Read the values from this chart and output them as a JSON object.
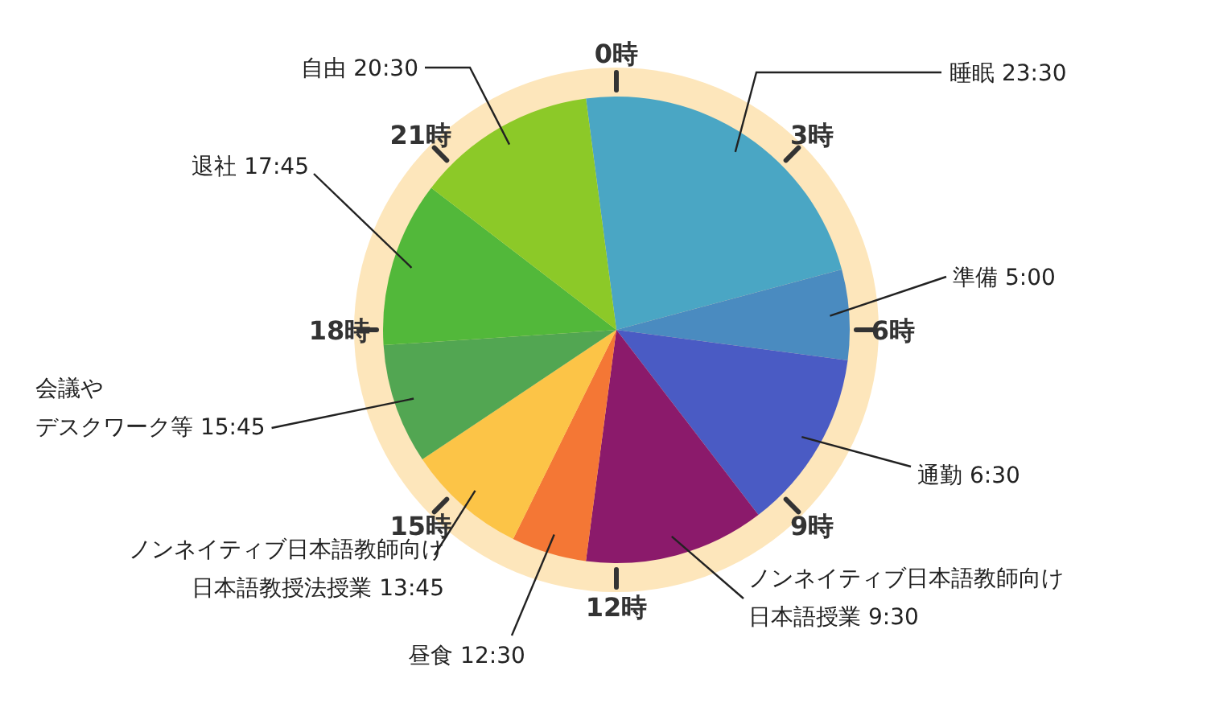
{
  "chart_data": {
    "type": "pie",
    "categories": [
      "睡眠 23:30",
      "準備 5:00",
      "通勤 6:30",
      "ノンネイティブ日本語教師向け日本語授業 9:30",
      "昼食 12:30",
      "ノンネイティブ日本語教師向け日本語教授法授業 13:45",
      "会議やデスクワーク等 15:45",
      "退社 17:45",
      "自由 20:30"
    ],
    "values": [
      22.92,
      6.25,
      12.5,
      12.5,
      5.21,
      8.33,
      8.33,
      11.46,
      12.5
    ],
    "colors": [
      "#4aa6c4",
      "#4a8bc0",
      "#4a5bc4",
      "#8b1a6b",
      "#f47735",
      "#fcc447",
      "#52a652",
      "#52b83a",
      "#8cc928"
    ],
    "annotations": [
      "0時",
      "3時",
      "6時",
      "9時",
      "12時",
      "15時",
      "18時",
      "21時"
    ]
  }
}
